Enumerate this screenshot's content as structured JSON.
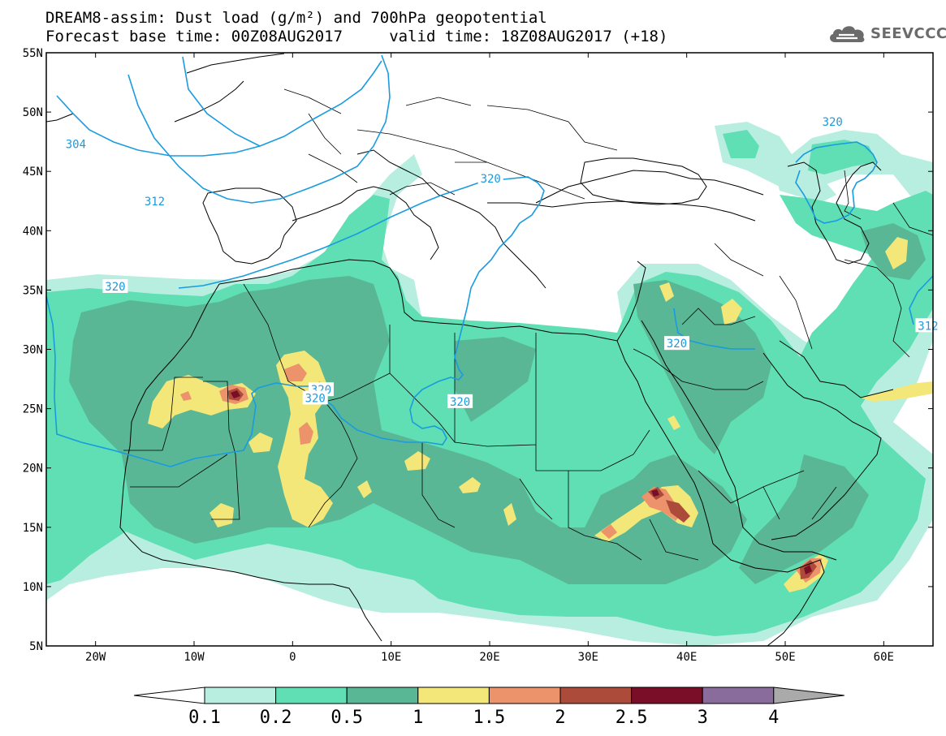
{
  "header": {
    "title_line1": "DREAM8-assim: Dust load (g/m²) and 700hPa geopotential",
    "title_line2": "Forecast base time: 00Z08AUG2017     valid time: 18Z08AUG2017 (+18)"
  },
  "logo": {
    "text": "SEEVCCC",
    "icon": "cloud-icon"
  },
  "map": {
    "lon_range": [
      -25,
      65
    ],
    "lat_range": [
      5,
      55
    ],
    "lon_ticks": [
      {
        "value": -20,
        "label": "20W"
      },
      {
        "value": -10,
        "label": "10W"
      },
      {
        "value": 0,
        "label": "0"
      },
      {
        "value": 10,
        "label": "10E"
      },
      {
        "value": 20,
        "label": "20E"
      },
      {
        "value": 30,
        "label": "30E"
      },
      {
        "value": 40,
        "label": "40E"
      },
      {
        "value": 50,
        "label": "50E"
      },
      {
        "value": 60,
        "label": "60E"
      }
    ],
    "lat_ticks": [
      {
        "value": 55,
        "label": "55N"
      },
      {
        "value": 50,
        "label": "50N"
      },
      {
        "value": 45,
        "label": "45N"
      },
      {
        "value": 40,
        "label": "40N"
      },
      {
        "value": 35,
        "label": "35N"
      },
      {
        "value": 30,
        "label": "30N"
      },
      {
        "value": 25,
        "label": "25N"
      },
      {
        "value": 20,
        "label": "20N"
      },
      {
        "value": 15,
        "label": "15N"
      },
      {
        "value": 10,
        "label": "10N"
      },
      {
        "value": 5,
        "label": "5N"
      }
    ],
    "contour_labels": [
      {
        "text": "304",
        "lon": -22,
        "lat": 47.3
      },
      {
        "text": "312",
        "lon": -14,
        "lat": 42.5
      },
      {
        "text": "320",
        "lon": -18,
        "lat": 35.3
      },
      {
        "text": "320",
        "lon": 2.9,
        "lat": 26.6
      },
      {
        "text": "320",
        "lon": 2.3,
        "lat": 25.9
      },
      {
        "text": "320",
        "lon": 17.0,
        "lat": 25.6
      },
      {
        "text": "320",
        "lon": 39.0,
        "lat": 30.5
      },
      {
        "text": "320",
        "lon": 20.1,
        "lat": 44.4
      },
      {
        "text": "320",
        "lon": 54.8,
        "lat": 49.2
      },
      {
        "text": "312",
        "lon": 64.5,
        "lat": 32.0
      }
    ]
  },
  "colorbar": {
    "labels": [
      "0.1",
      "0.2",
      "0.5",
      "1",
      "1.5",
      "2",
      "2.5",
      "3",
      "4"
    ],
    "colors": [
      "#ffffff",
      "#b7eedf",
      "#5fdfb3",
      "#5ab795",
      "#f4e779",
      "#ec936b",
      "#ad4b3b",
      "#7a0d28",
      "#8a6c9c",
      "#aaaaaa"
    ]
  }
}
